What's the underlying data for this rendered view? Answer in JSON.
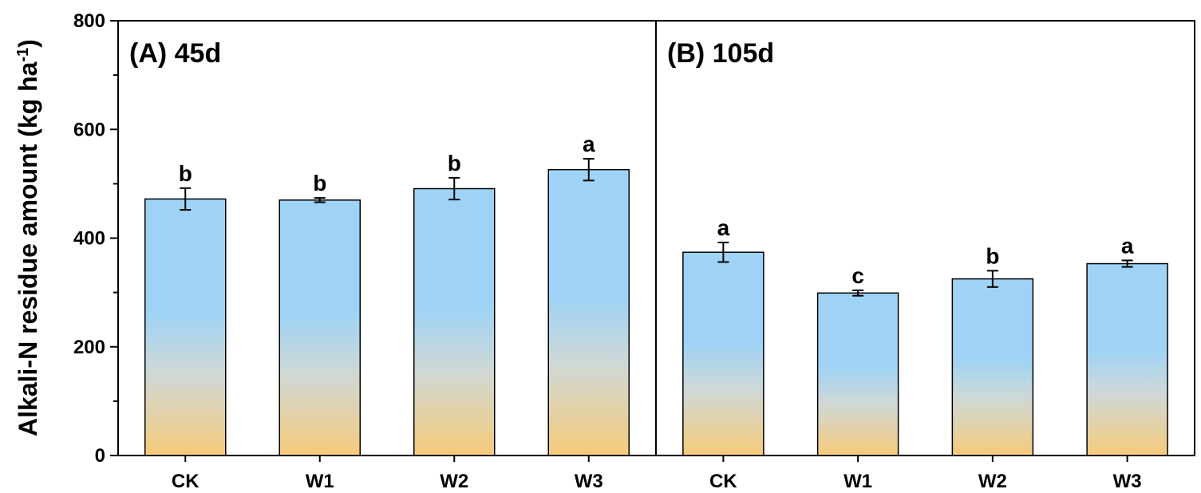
{
  "chart_data": {
    "type": "bar",
    "ylabel": "Alkali-N residue amount (kg ha",
    "ylabel_superscript": "-1",
    "ylabel_close": ")",
    "ylim": [
      0,
      800
    ],
    "yticks": [
      0,
      200,
      400,
      600,
      800
    ],
    "panels": [
      {
        "label": "(A) 45d",
        "categories": [
          "CK",
          "W1",
          "W2",
          "W3"
        ],
        "values": [
          472,
          470,
          491,
          526
        ],
        "errors": [
          20,
          4,
          20,
          20
        ],
        "letters": [
          "b",
          "b",
          "b",
          "a"
        ]
      },
      {
        "label": "(B) 105d",
        "categories": [
          "CK",
          "W1",
          "W2",
          "W3"
        ],
        "values": [
          374,
          299,
          325,
          353
        ],
        "errors": [
          18,
          5,
          15,
          6
        ],
        "letters": [
          "a",
          "c",
          "b",
          "a"
        ]
      }
    ],
    "colors": {
      "bar_top": "#9fd3f5",
      "bar_mid": "#cfd8d6",
      "bar_bottom": "#f6cb7a",
      "axis": "#000000"
    }
  }
}
